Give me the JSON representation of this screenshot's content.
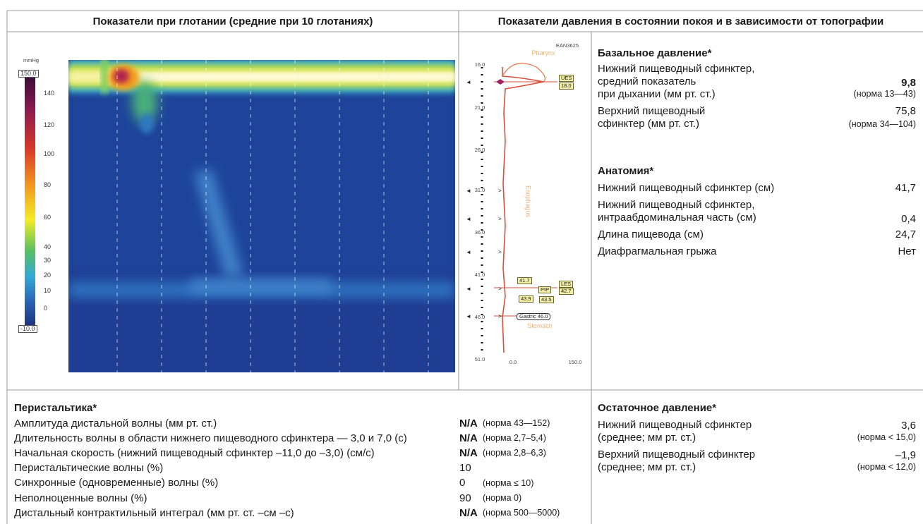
{
  "header": {
    "left_title": "Показатели при глотании (средние при 10 глотаниях)",
    "right_title": "Показатели давления в состоянии покоя и в зависимости от топографии"
  },
  "heatmap": {
    "unit": "mmHg",
    "scale_labels": [
      "150.0",
      "140",
      "120",
      "100",
      "80",
      "60",
      "40",
      "30",
      "20",
      "10",
      "0",
      "-10.0"
    ]
  },
  "topography": {
    "id": "EAN3625",
    "region_labels": [
      "Pharynx",
      "Esophagus",
      "Stomach"
    ],
    "depth_labels": [
      "16.0",
      "21.0",
      "26.0",
      "31.0",
      "36.0",
      "41.0",
      "46.0",
      "51.0"
    ],
    "markers": [
      "UES",
      "18.0",
      "41.7",
      "LES",
      "42.7",
      "PIP",
      "43.9",
      "43.5",
      "Gastric 46.0"
    ],
    "x_labels": [
      "0.0",
      "150.0"
    ]
  },
  "basal": {
    "title": "Базальное давление*",
    "les_lines": [
      "Нижний пищеводный сфинктер,",
      "средний показатель",
      "при дыхании (мм рт. ст.)"
    ],
    "les_value": "9,8",
    "les_norm": "(норма 13—43)",
    "ues_lines": [
      "Верхний пищеводный",
      "сфинктер (мм рт. ст.)"
    ],
    "ues_value": "75,8",
    "ues_norm": "(норма 34—104)"
  },
  "anatomy": {
    "title": "Анатомия*",
    "rows": [
      {
        "label": [
          "Нижний пищеводный сфинктер (см)"
        ],
        "value": "41,7"
      },
      {
        "label": [
          "Нижний пищеводный сфинктер,",
          "интраабдоминальная часть (см)"
        ],
        "value": "0,4"
      },
      {
        "label": [
          "Длина пищевода (см)"
        ],
        "value": "24,7"
      },
      {
        "label": [
          "Диафрагмальная грыжа"
        ],
        "value": "Нет"
      }
    ]
  },
  "peristalsis": {
    "title": "Перистальтика*",
    "rows": [
      {
        "label": "Амплитуда дистальной волны (мм рт. ст.)",
        "value": "N/A",
        "norm": "(норма 43—152)"
      },
      {
        "label": "Длительность волны в области нижнего пищеводного сфинктера — 3,0 и 7,0 (с)",
        "value": "N/A",
        "norm": "(норма 2,7–5,4)"
      },
      {
        "label": "Начальная скорость (нижний пищеводный сфинктер –11,0 до –3,0) (см/с)",
        "value": "N/A",
        "norm": "(норма 2,8–6,3)"
      },
      {
        "label": "Перистальтические волны (%)",
        "value": "10"
      },
      {
        "label": "Синхронные (одновременные) волны (%)",
        "value": "0",
        "norm": "(норма ≤ 10)"
      },
      {
        "label": "Неполноценные волны (%)",
        "value": "90",
        "norm": "(норма 0)"
      },
      {
        "label": "Дистальный контрактильный интеграл (мм рт. ст. –см –с)",
        "value": "N/A",
        "norm": "(норма 500—5000)"
      }
    ]
  },
  "residual": {
    "title": "Остаточное давление*",
    "rows": [
      {
        "label": [
          "Нижний пищеводный сфинктер",
          "(среднее; мм рт. ст.)"
        ],
        "value": "3,6",
        "norm": "(норма < 15,0)"
      },
      {
        "label": [
          "Верхний пищеводный сфинктер",
          "(среднее; мм рт. ст.)"
        ],
        "value": "–1,9",
        "norm": "(норма < 12,0)"
      }
    ]
  }
}
